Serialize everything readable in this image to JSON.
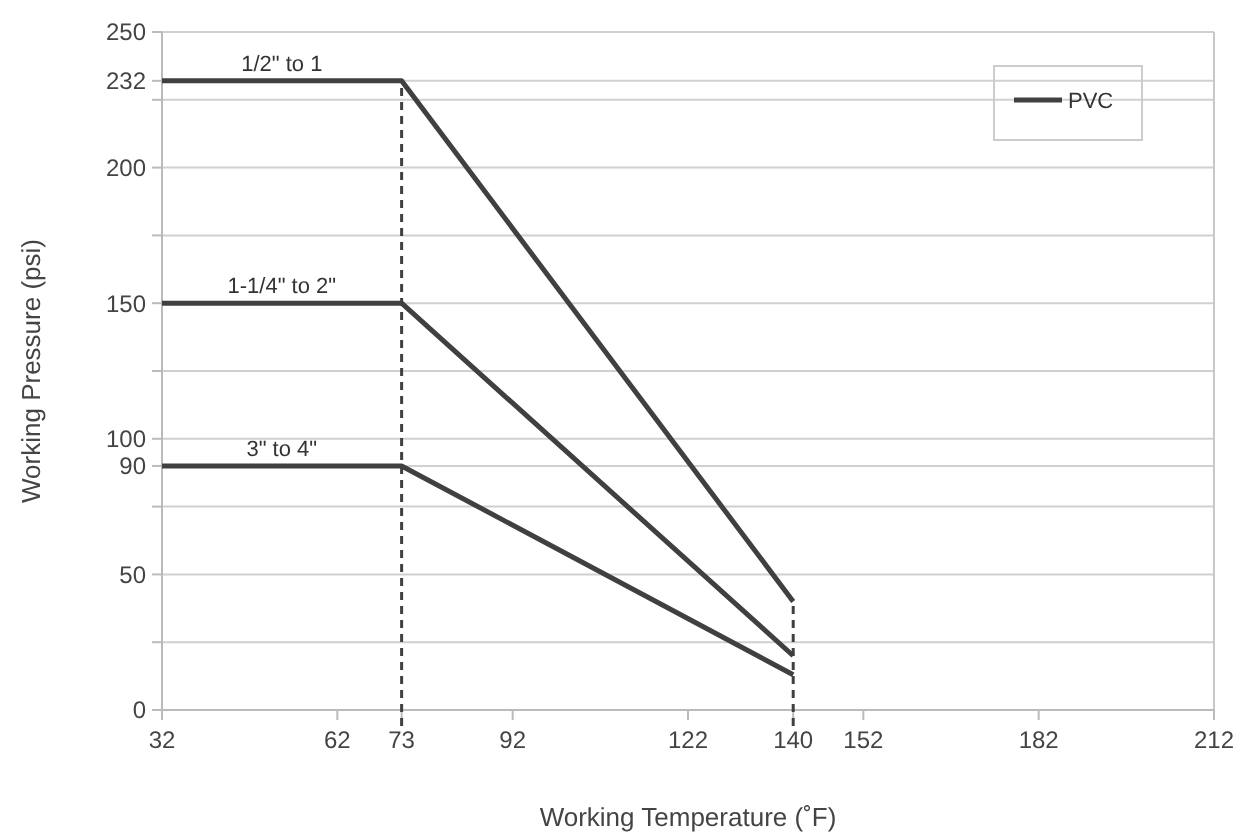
{
  "chart_data": {
    "type": "line",
    "xlabel": "Working Temperature (˚F)",
    "ylabel": "Working Pressure (psi)",
    "annotations": [
      {
        "text": "1/2\" to 1",
        "y": 232
      },
      {
        "text": "1-1/4\" to 2\"",
        "y": 150
      },
      {
        "text": "3\" to 4\"",
        "y": 90
      }
    ],
    "legend": "top right",
    "grid": "y",
    "marker": "none",
    "line_style": "solid",
    "xlim": [
      32,
      212
    ],
    "xticks": [
      32,
      62,
      73,
      92,
      122,
      140,
      152,
      182,
      212
    ],
    "ylim": [
      0,
      250
    ],
    "yticks": [
      0,
      {
        "value": 25,
        "label": null
      },
      50,
      {
        "value": 75,
        "label": null
      },
      90,
      100,
      {
        "value": 125,
        "label": null
      },
      150,
      {
        "value": 175,
        "label": null
      },
      200,
      {
        "value": 225,
        "label": null
      },
      232,
      250
    ],
    "x": [
      32,
      73,
      140
    ],
    "series": [
      {
        "name": "PVC",
        "color": "#404040",
        "values": [
          232,
          232,
          40
        ]
      },
      {
        "color": "#404040",
        "values": [
          150,
          150,
          20
        ]
      },
      {
        "color": "#404040",
        "values": [
          90,
          90,
          13
        ]
      }
    ],
    "ref_lines": [
      {
        "axis": "x",
        "value": 73,
        "color": "#404040",
        "line_style": "dashed"
      },
      {
        "axis": "x",
        "value": 140,
        "color": "#404040",
        "line_style": "dashed"
      }
    ]
  }
}
